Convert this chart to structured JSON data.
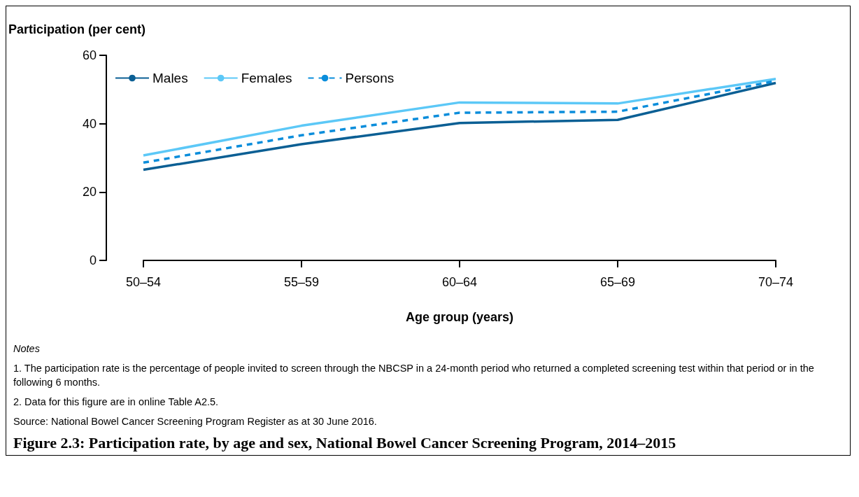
{
  "chart_data": {
    "type": "line",
    "title": "Figure 2.3: Participation rate, by age and sex, National Bowel Cancer Screening Program, 2014–2015",
    "ylabel": "Participation (per cent)",
    "xlabel": "Age group (years)",
    "categories": [
      "50–54",
      "55–59",
      "60–64",
      "65–69",
      "70–74"
    ],
    "series": [
      {
        "name": "Males",
        "color": "#0b5f94",
        "line_style": "solid",
        "values": [
          26.5,
          34.0,
          40.2,
          41.1,
          51.9
        ]
      },
      {
        "name": "Females",
        "color": "#5cc8f7",
        "line_style": "solid",
        "values": [
          30.7,
          39.4,
          46.2,
          45.9,
          53.1
        ]
      },
      {
        "name": "Persons",
        "color": "#0a8ddb",
        "line_style": "dashed",
        "values": [
          28.6,
          36.6,
          43.2,
          43.5,
          52.5
        ]
      }
    ],
    "ylim": [
      0,
      60
    ],
    "yticks": [
      0,
      20,
      40,
      60
    ],
    "grid": false,
    "legend": "top left",
    "annotations": [
      "Notes",
      "1. The participation rate is the percentage of people invited to screen through the NBCSP in a 24-month period who returned a completed screening test within that period or in the following 6 months.",
      "2. Data for this figure are in online Table A2.5.",
      "Source: National Bowel Cancer Screening Program Register as at 30 June 2016."
    ]
  }
}
